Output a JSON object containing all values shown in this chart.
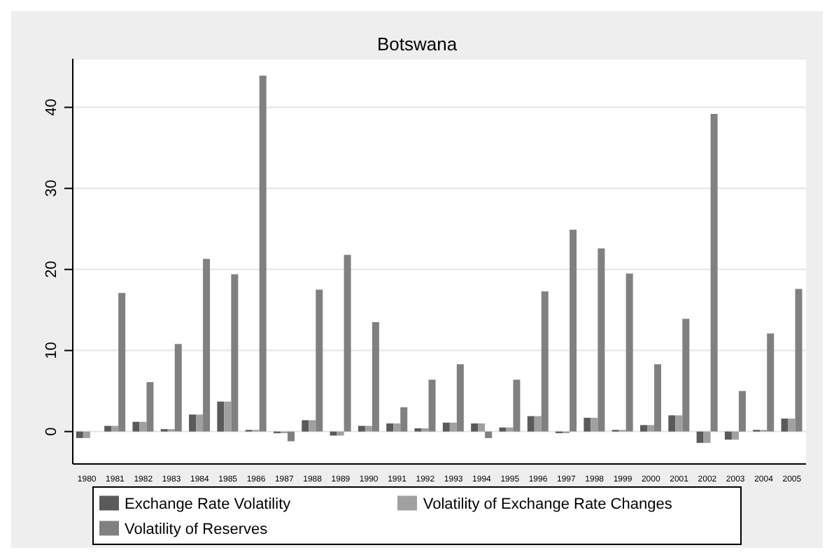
{
  "chart_data": {
    "type": "bar",
    "title": "Botswana",
    "categories": [
      "1980",
      "1981",
      "1982",
      "1983",
      "1984",
      "1985",
      "1986",
      "1987",
      "1988",
      "1989",
      "1990",
      "1991",
      "1992",
      "1993",
      "1994",
      "1995",
      "1996",
      "1997",
      "1998",
      "1999",
      "2000",
      "2001",
      "2002",
      "2003",
      "2004",
      "2005"
    ],
    "series": [
      {
        "name": "Exchange Rate Volatility",
        "color": "#5a5a5a",
        "values": [
          -0.8,
          0.7,
          1.2,
          0.3,
          2.1,
          3.7,
          0.2,
          -0.2,
          1.4,
          -0.5,
          0.7,
          1.0,
          0.4,
          1.1,
          1.0,
          0.5,
          1.9,
          -0.2,
          1.7,
          0.2,
          0.8,
          2.0,
          -1.4,
          -1.0,
          0.2,
          1.6
        ]
      },
      {
        "name": "Volatility of Exchange Rate Changes",
        "color": "#a0a0a0",
        "values": [
          -0.8,
          0.7,
          1.2,
          0.3,
          2.1,
          3.7,
          0.2,
          -0.2,
          1.4,
          -0.5,
          0.7,
          1.0,
          0.4,
          1.1,
          1.0,
          0.5,
          1.9,
          -0.2,
          1.7,
          0.2,
          0.8,
          2.0,
          -1.4,
          -1.0,
          0.2,
          1.6
        ]
      },
      {
        "name": "Volatility of Reserves",
        "color": "#808080",
        "values": [
          0,
          17.1,
          6.1,
          10.8,
          21.3,
          19.4,
          43.9,
          -1.2,
          17.5,
          21.8,
          13.5,
          3.0,
          6.4,
          8.3,
          -0.8,
          6.4,
          17.3,
          24.9,
          22.6,
          19.5,
          8.3,
          13.9,
          39.2,
          5.0,
          12.1,
          17.6
        ]
      }
    ],
    "ylim": [
      -4,
      46
    ],
    "yticks": [
      0,
      10,
      20,
      30,
      40
    ],
    "grid": "y",
    "legend": "bottom"
  }
}
